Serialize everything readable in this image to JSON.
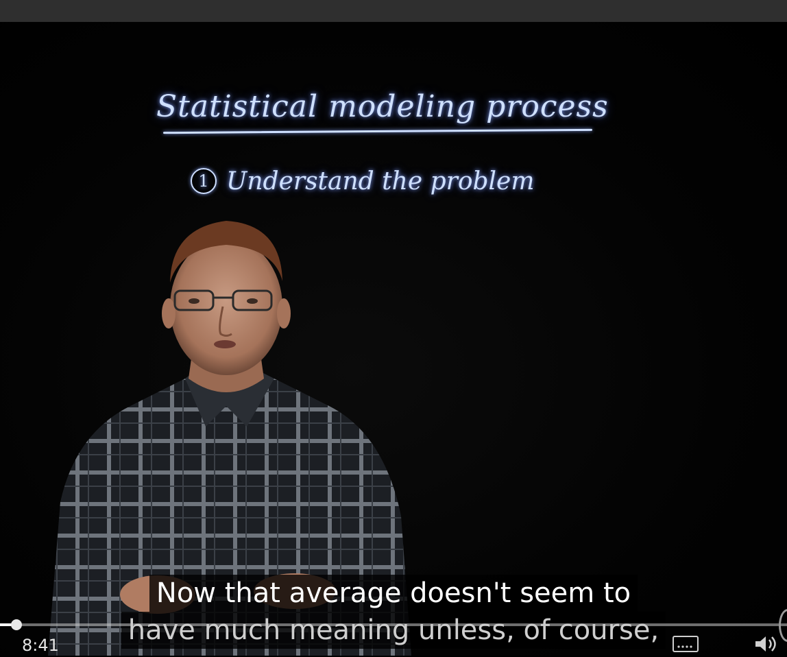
{
  "board": {
    "title": "Statistical modeling process",
    "step_number": "1",
    "step_text": "Understand the problem"
  },
  "subtitles": {
    "line1": "Now that average doesn't seem to",
    "line2": "have much meaning unless, of course,"
  },
  "player": {
    "time": "8:41",
    "progress": 0.02,
    "cc_icon": "captions-icon",
    "volume_icon": "volume-icon"
  },
  "colors": {
    "chalk": "#cfe0ff",
    "top_bar": "#2f2f2f"
  }
}
